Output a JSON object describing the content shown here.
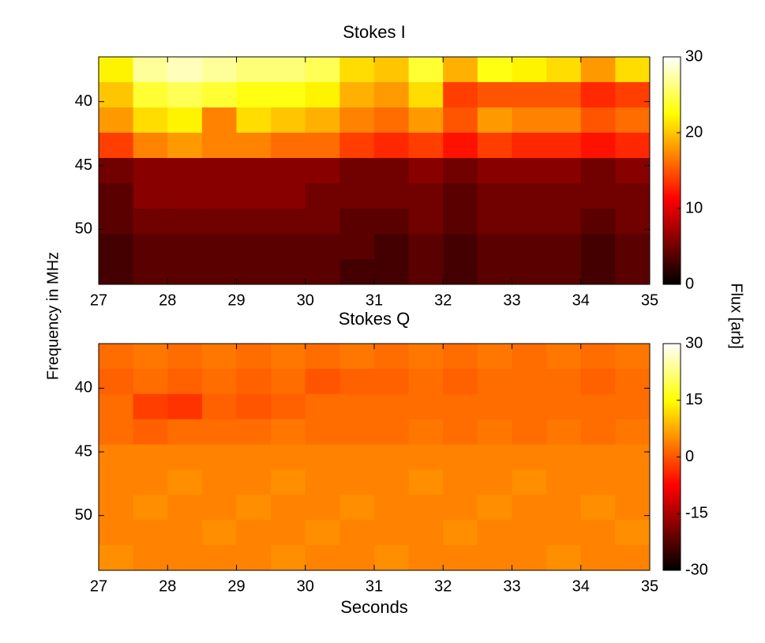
{
  "figure": {
    "ylabel": "Frequency in MHz",
    "colorbar_label": "Flux [arb]"
  },
  "chart_data": [
    {
      "type": "heatmap",
      "title": "Stokes I",
      "colormap": "hot",
      "xlim": [
        27,
        35
      ],
      "xticks": [
        27,
        28,
        29,
        30,
        31,
        32,
        33,
        34,
        35
      ],
      "ylim": [
        36.5,
        54.3
      ],
      "y_direction": "reverse",
      "yticks": [
        40,
        45,
        50
      ],
      "clim": [
        0,
        30
      ],
      "cticks": [
        0,
        10,
        20,
        30
      ],
      "z": [
        [
          22,
          27,
          28,
          27,
          26,
          26,
          25,
          21,
          20,
          24,
          19,
          23,
          22,
          21,
          18,
          21
        ],
        [
          20,
          24,
          25,
          24,
          23,
          23,
          22,
          19,
          18,
          21,
          14,
          15,
          15,
          15,
          13,
          14
        ],
        [
          18,
          21,
          22,
          17,
          21,
          20,
          19,
          17,
          16,
          18,
          15,
          18,
          17,
          17,
          15,
          16
        ],
        [
          14,
          17,
          18,
          17,
          17,
          16,
          16,
          14,
          13,
          14,
          12,
          14,
          13,
          13,
          12,
          13
        ],
        [
          5,
          6,
          6,
          6,
          6,
          6,
          6,
          5,
          5,
          6,
          5,
          6,
          6,
          6,
          5,
          6
        ],
        [
          4,
          6,
          6,
          6,
          6,
          6,
          5,
          5,
          5,
          5,
          4,
          5,
          5,
          5,
          5,
          5
        ],
        [
          4,
          5,
          5,
          5,
          5,
          5,
          5,
          4,
          4,
          5,
          4,
          5,
          5,
          5,
          4,
          5
        ],
        [
          3,
          4,
          4,
          4,
          4,
          4,
          4,
          4,
          3,
          4,
          3,
          4,
          4,
          4,
          3,
          4
        ],
        [
          3,
          4,
          4,
          4,
          4,
          4,
          4,
          3,
          3,
          4,
          3,
          4,
          4,
          4,
          3,
          4
        ]
      ]
    },
    {
      "type": "heatmap",
      "title": "Stokes Q",
      "xlabel": "Seconds",
      "colormap": "hot",
      "xlim": [
        27,
        35
      ],
      "xticks": [
        27,
        28,
        29,
        30,
        31,
        32,
        33,
        34,
        35
      ],
      "ylim": [
        36.5,
        54.3
      ],
      "y_direction": "reverse",
      "yticks": [
        40,
        45,
        50
      ],
      "clim": [
        -30,
        30
      ],
      "cticks": [
        -30,
        -15,
        0,
        15,
        30
      ],
      "z": [
        [
          2,
          3,
          2,
          3,
          2,
          3,
          2,
          3,
          2,
          3,
          2,
          3,
          2,
          3,
          2,
          3
        ],
        [
          1,
          2,
          1,
          2,
          1,
          2,
          0,
          1,
          1,
          2,
          1,
          2,
          2,
          2,
          1,
          2
        ],
        [
          2,
          -2,
          -3,
          1,
          0,
          1,
          2,
          2,
          2,
          2,
          2,
          2,
          2,
          2,
          2,
          2
        ],
        [
          2,
          1,
          2,
          2,
          2,
          3,
          2,
          2,
          2,
          3,
          2,
          3,
          2,
          3,
          2,
          3
        ],
        [
          4,
          4,
          4,
          4,
          4,
          4,
          4,
          4,
          4,
          4,
          4,
          4,
          4,
          4,
          4,
          4
        ],
        [
          4,
          4,
          5,
          4,
          4,
          5,
          4,
          4,
          4,
          5,
          4,
          4,
          5,
          4,
          4,
          4
        ],
        [
          4,
          5,
          4,
          4,
          5,
          4,
          4,
          5,
          4,
          4,
          4,
          5,
          4,
          4,
          5,
          4
        ],
        [
          4,
          4,
          4,
          5,
          4,
          4,
          5,
          4,
          4,
          4,
          5,
          4,
          4,
          4,
          4,
          5
        ],
        [
          5,
          4,
          4,
          4,
          4,
          5,
          4,
          4,
          5,
          4,
          4,
          4,
          4,
          5,
          4,
          4
        ]
      ]
    }
  ]
}
